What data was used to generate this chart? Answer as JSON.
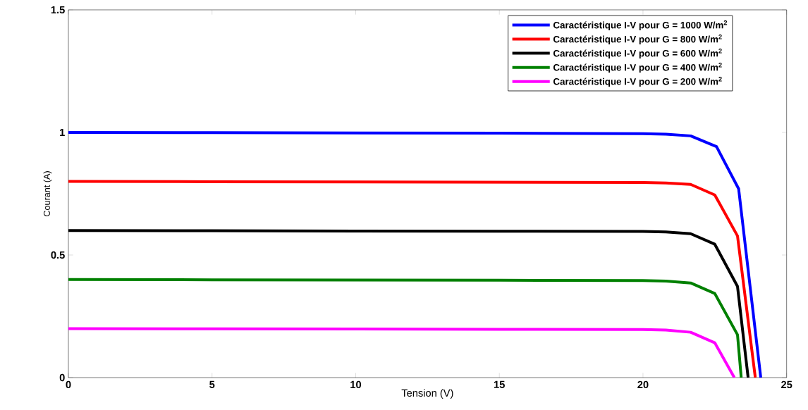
{
  "chart_data": {
    "type": "line",
    "xlabel": "Tension (V)",
    "ylabel": "Courant (A)",
    "xlim": [
      0,
      25
    ],
    "ylim": [
      0,
      1.5
    ],
    "xticks": [
      0,
      5,
      10,
      15,
      20,
      25
    ],
    "yticks": [
      0,
      0.5,
      1,
      1.5
    ],
    "grid": false,
    "legend": "top right",
    "marker": "none",
    "line_style": "solid",
    "series": [
      {
        "name": "Caractéristique I-V pour G = 1000 W/m$^{2}$",
        "color": "#0000ff",
        "x": [
          0,
          5,
          10,
          15,
          20,
          20.8,
          21.66,
          22.56,
          23.33,
          24.1
        ],
        "values": [
          1.0,
          0.999,
          0.998,
          0.997,
          0.995,
          0.993,
          0.986,
          0.942,
          0.77,
          0
        ]
      },
      {
        "name": "Caractéristique I-V pour G = 800 W/m$^{2}$",
        "color": "#ff0000",
        "x": [
          0,
          5,
          10,
          15,
          20,
          20.8,
          21.66,
          22.5,
          23.29,
          23.91
        ],
        "values": [
          0.8,
          0.799,
          0.798,
          0.797,
          0.796,
          0.794,
          0.788,
          0.745,
          0.578,
          0
        ]
      },
      {
        "name": "Caractéristique I-V pour G = 600 W/m$^{2}$",
        "color": "#000000",
        "x": [
          0,
          5,
          10,
          15,
          20,
          20.8,
          21.66,
          22.5,
          23.29,
          23.66
        ],
        "values": [
          0.6,
          0.599,
          0.598,
          0.597,
          0.596,
          0.594,
          0.587,
          0.544,
          0.372,
          0
        ]
      },
      {
        "name": "Caractéristique I-V pour G = 400 W/m$^{2}$",
        "color": "#008000",
        "x": [
          0,
          5,
          10,
          15,
          20,
          20.8,
          21.66,
          22.5,
          23.29,
          23.42
        ],
        "values": [
          0.4,
          0.399,
          0.398,
          0.397,
          0.396,
          0.394,
          0.386,
          0.343,
          0.175,
          0
        ]
      },
      {
        "name": "Caractéristique I-V pour G = 200 W/m$^{2}$",
        "color": "#ff00ff",
        "x": [
          0,
          5,
          10,
          15,
          20,
          20.8,
          21.66,
          22.5,
          23.18
        ],
        "values": [
          0.2,
          0.199,
          0.198,
          0.197,
          0.196,
          0.194,
          0.185,
          0.142,
          0
        ]
      }
    ]
  }
}
